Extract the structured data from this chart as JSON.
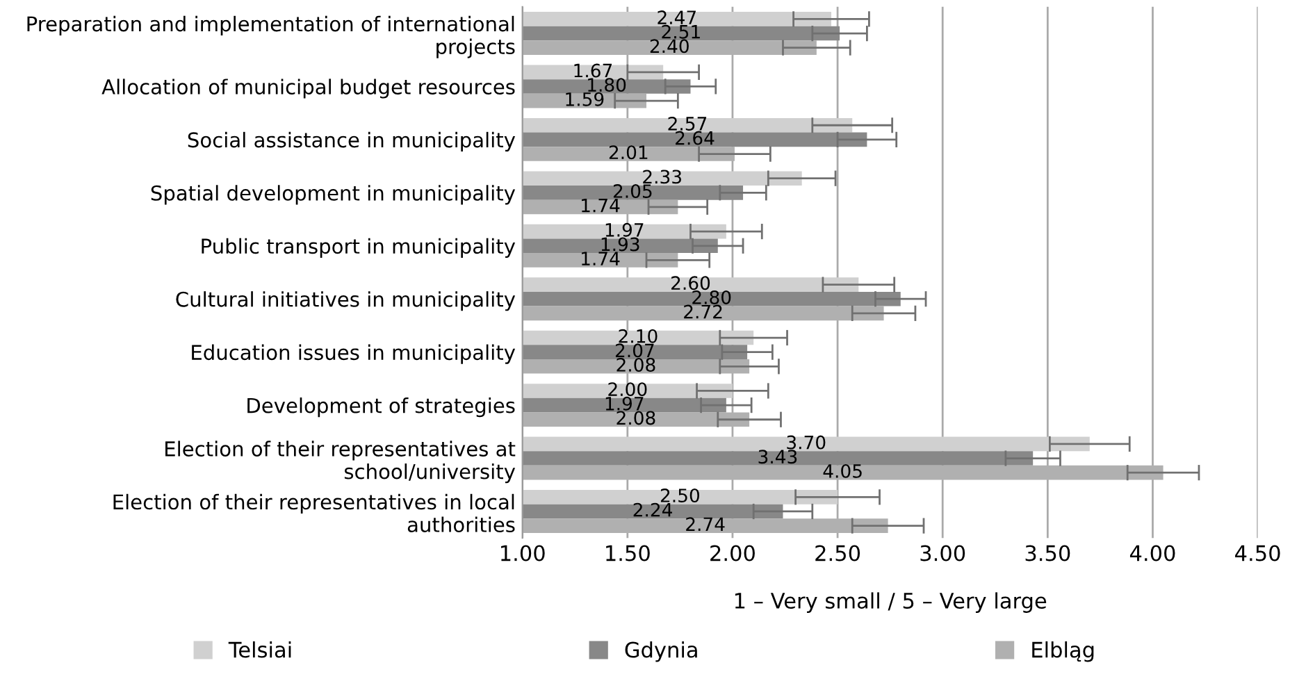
{
  "chart_data": {
    "type": "bar",
    "orientation": "horizontal",
    "xlabel": "1 – Very small / 5 – Very large",
    "categories": [
      "Preparation and implementation of international projects",
      "Allocation of municipal budget resources",
      "Social assistance in municipality",
      "Spatial development in municipality",
      "Public transport in municipality",
      "Cultural initiatives in municipality",
      "Education issues in municipality",
      "Development of strategies",
      "Election of their representatives at school/university",
      "Election of their representatives in local authorities"
    ],
    "series": [
      {
        "name": "Telsiai",
        "color": "#d0d0d0",
        "values": [
          2.47,
          1.67,
          2.57,
          2.33,
          1.97,
          2.6,
          2.1,
          2.0,
          3.7,
          2.5
        ],
        "value_labels": [
          "2.47",
          "1.67",
          "2.57",
          "2.33",
          "1.97",
          "2.60",
          "2.10",
          "2.00",
          "3.70",
          "2.50"
        ],
        "errors": [
          0.18,
          0.17,
          0.19,
          0.16,
          0.17,
          0.17,
          0.16,
          0.17,
          0.19,
          0.2
        ]
      },
      {
        "name": "Gdynia",
        "color": "#888888",
        "values": [
          2.51,
          1.8,
          2.64,
          2.05,
          1.93,
          2.8,
          2.07,
          1.97,
          3.43,
          2.24
        ],
        "value_labels": [
          "2.51",
          "1.80",
          "2.64",
          "2.05",
          "1.93",
          "2.80",
          "2.07",
          "1.97",
          "3.43",
          "2.24"
        ],
        "errors": [
          0.13,
          0.12,
          0.14,
          0.11,
          0.12,
          0.12,
          0.12,
          0.12,
          0.13,
          0.14
        ]
      },
      {
        "name": "Elbląg",
        "color": "#b0b0b0",
        "values": [
          2.4,
          1.59,
          2.01,
          1.74,
          1.74,
          2.72,
          2.08,
          2.08,
          4.05,
          2.74
        ],
        "value_labels": [
          "2.40",
          "1.59",
          "2.01",
          "1.74",
          "1.74",
          "2.72",
          "2.08",
          "2.08",
          "4.05",
          "2.74"
        ],
        "errors": [
          0.16,
          0.15,
          0.17,
          0.14,
          0.15,
          0.15,
          0.14,
          0.15,
          0.17,
          0.17
        ]
      }
    ],
    "xlim": [
      1,
      4.5
    ],
    "xticks": [
      {
        "value": 1,
        "label": "1.00"
      },
      {
        "value": 1.5,
        "label": "1.50"
      },
      {
        "value": 2,
        "label": "2.00"
      },
      {
        "value": 2.5,
        "label": "2.50"
      },
      {
        "value": 3,
        "label": "3.00"
      },
      {
        "value": 3.5,
        "label": "3.50"
      },
      {
        "value": 4,
        "label": "4.00"
      },
      {
        "value": 4.5,
        "label": "4.50"
      }
    ],
    "grid": "x",
    "legend": "bottom"
  }
}
